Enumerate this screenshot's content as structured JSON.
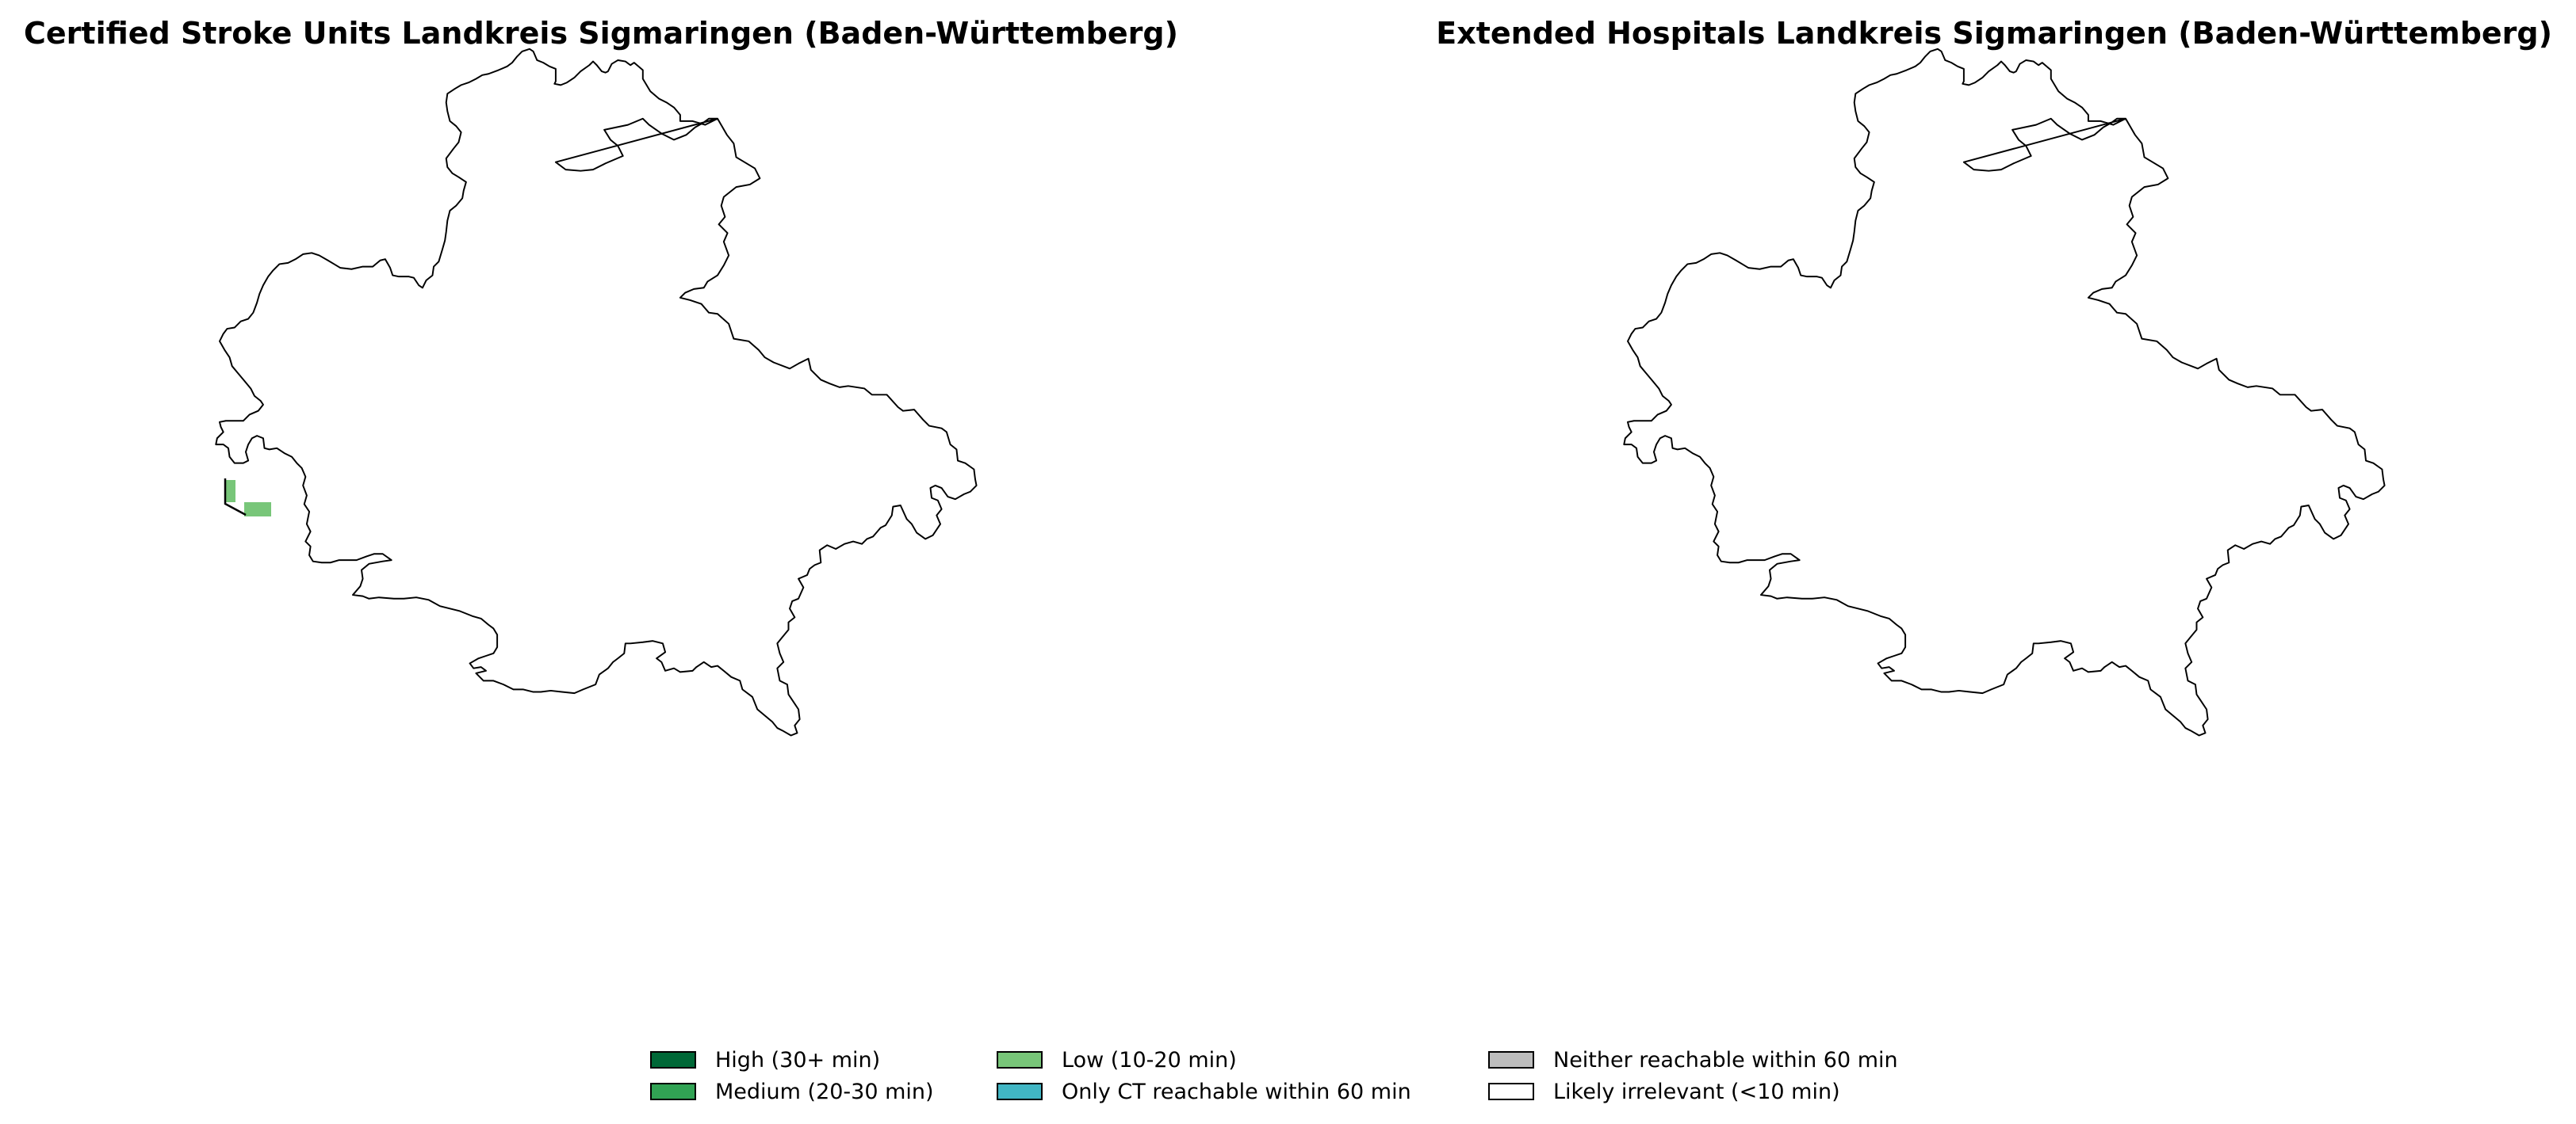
{
  "maps": [
    {
      "title": "Certified Stroke Units Landkreis Sigmaringen (Baden-Württemberg)",
      "highlighted_category": "Low (10-20 min)"
    },
    {
      "title": "Extended Hospitals Landkreis Sigmaringen (Baden-Württemberg)"
    }
  ],
  "legend": [
    {
      "label": "High (30+ min)",
      "color": "#006837"
    },
    {
      "label": "Medium (20-30 min)",
      "color": "#31a354"
    },
    {
      "label": "Low (10-20 min)",
      "color": "#78c679"
    },
    {
      "label": "Only CT reachable within 60 min",
      "color": "#41b6c4"
    },
    {
      "label": "Neither reachable within 60 min",
      "color": "#bdbdbd"
    },
    {
      "label": "Likely irrelevant (<10 min)",
      "color": "#ffffff"
    }
  ]
}
